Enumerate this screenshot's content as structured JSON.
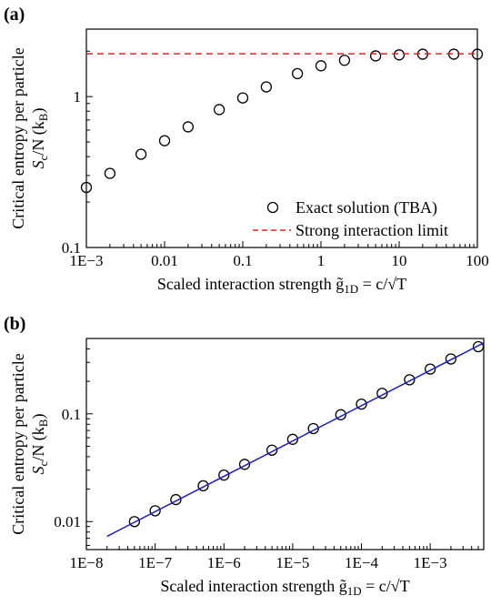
{
  "chart_data": [
    {
      "type": "scatter",
      "panel_label": "(a)",
      "xscale": "log",
      "yscale": "log",
      "xlim": [
        0.001,
        100
      ],
      "ylim": [
        0.1,
        2.8
      ],
      "xticks": [
        0.001,
        0.01,
        0.1,
        1,
        10,
        100
      ],
      "xtick_labels": [
        "1E−3",
        "0.01",
        "0.1",
        "1",
        "10",
        "100"
      ],
      "yticks": [
        0.1,
        1
      ],
      "ytick_labels": [
        "0.1",
        "1"
      ],
      "xlabel": "Scaled interaction strength g̃",
      "xlabel_sub": "1D",
      "xlabel_tail": " = c/√T",
      "ylabel_line1": "Critical entropy per particle",
      "ylabel_line2_pre": "S",
      "ylabel_line2_sub": "c",
      "ylabel_line2_mid": "/N (k",
      "ylabel_line2_sub2": "B",
      "ylabel_line2_post": ")",
      "legend_placement": "bottom-right",
      "series": [
        {
          "name": "Exact solution (TBA)",
          "marker": "open-circle",
          "color": "#000000",
          "x": [
            0.001,
            0.002,
            0.005,
            0.01,
            0.02,
            0.05,
            0.1,
            0.2,
            0.5,
            1,
            2,
            5,
            10,
            20,
            50,
            100
          ],
          "y": [
            0.25,
            0.31,
            0.415,
            0.51,
            0.63,
            0.82,
            0.98,
            1.16,
            1.42,
            1.6,
            1.74,
            1.86,
            1.89,
            1.91,
            1.91,
            1.91
          ]
        },
        {
          "name": "Strong interaction limit",
          "style": "dashed-line",
          "color": "#e8221d",
          "x": [
            0.001,
            100
          ],
          "y": [
            1.92,
            1.92
          ]
        }
      ]
    },
    {
      "type": "scatter",
      "panel_label": "(b)",
      "xscale": "log",
      "yscale": "log",
      "xlim": [
        1e-08,
        0.006
      ],
      "ylim": [
        0.0055,
        0.5
      ],
      "xticks": [
        1e-08,
        1e-07,
        1e-06,
        1e-05,
        0.0001,
        0.001
      ],
      "xtick_labels": [
        "1E−8",
        "1E−7",
        "1E−6",
        "1E−5",
        "1E−4",
        "1E−3"
      ],
      "yticks": [
        0.01,
        0.1
      ],
      "ytick_labels": [
        "0.01",
        "0.1"
      ],
      "xlabel": "Scaled interaction strength g̃",
      "xlabel_sub": "1D",
      "xlabel_tail": " = c/√T",
      "ylabel_line1": "Critical entropy per particle",
      "ylabel_line2_pre": "S",
      "ylabel_line2_sub": "c",
      "ylabel_line2_mid": "/N (k",
      "ylabel_line2_sub2": "B",
      "ylabel_line2_post": ")",
      "series": [
        {
          "marker": "open-circle",
          "color": "#000000",
          "x": [
            5e-08,
            1e-07,
            2e-07,
            5e-07,
            1e-06,
            2e-06,
            5e-06,
            1e-05,
            2e-05,
            5e-05,
            0.0001,
            0.0002,
            0.0005,
            0.001,
            0.002,
            0.005
          ],
          "y": [
            0.01,
            0.0126,
            0.016,
            0.0215,
            0.027,
            0.034,
            0.046,
            0.058,
            0.073,
            0.098,
            0.123,
            0.155,
            0.207,
            0.26,
            0.323,
            0.42
          ]
        },
        {
          "style": "solid-line",
          "color": "#1a1acc",
          "x": [
            2e-08,
            0.006
          ],
          "y": [
            0.0073,
            0.455
          ]
        }
      ]
    }
  ]
}
